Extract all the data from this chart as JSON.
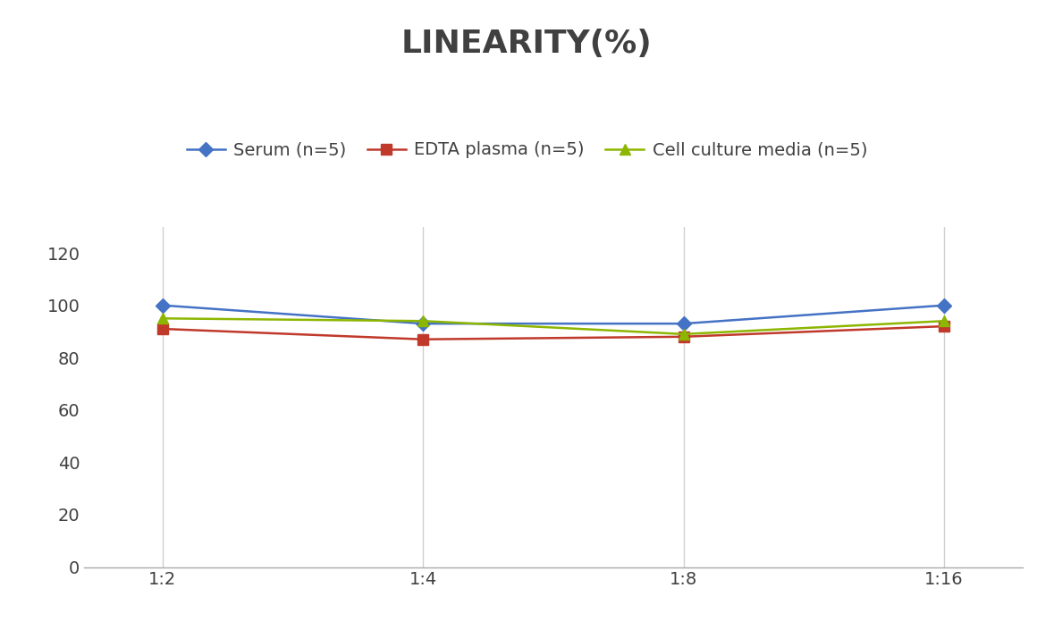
{
  "title": "LINEARITY(%)",
  "title_fontsize": 26,
  "title_fontweight": "bold",
  "title_color": "#404040",
  "x_labels": [
    "1:2",
    "1:4",
    "1:8",
    "1:16"
  ],
  "x_values": [
    0,
    1,
    2,
    3
  ],
  "series": [
    {
      "label": "Serum (n=5)",
      "values": [
        100,
        93,
        93,
        100
      ],
      "color": "#4472C4",
      "marker": "D",
      "markersize": 8
    },
    {
      "label": "EDTA plasma (n=5)",
      "values": [
        91,
        87,
        88,
        92
      ],
      "color": "#C0392B",
      "marker": "s",
      "markersize": 8
    },
    {
      "label": "Cell culture media (n=5)",
      "values": [
        95,
        94,
        89,
        94
      ],
      "color": "#8db600",
      "marker": "^",
      "markersize": 9
    }
  ],
  "ylim": [
    0,
    130
  ],
  "yticks": [
    0,
    20,
    40,
    60,
    80,
    100,
    120
  ],
  "tick_fontsize": 14,
  "legend_fontsize": 14,
  "grid_color": "#d0d0d0",
  "background_color": "#ffffff",
  "line_width": 1.8
}
